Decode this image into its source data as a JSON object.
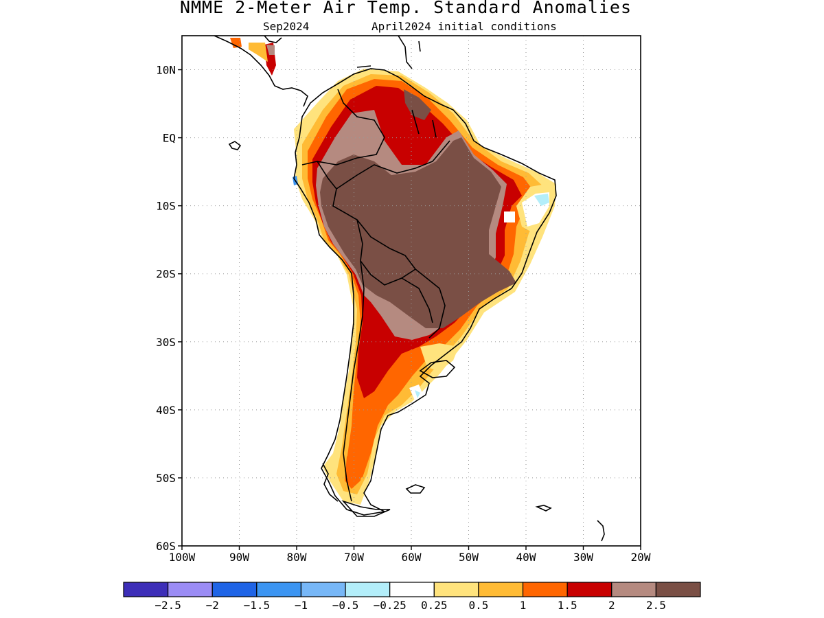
{
  "title": "NMME 2-Meter Air Temp. Standard Anomalies",
  "subtitle_left": "Sep2024",
  "subtitle_right": "April2024 initial conditions",
  "map": {
    "lon_range": [
      -100,
      -20
    ],
    "lat_range": [
      -60,
      15
    ],
    "lon_ticks": [
      {
        "value": -100,
        "label": "100W"
      },
      {
        "value": -90,
        "label": "90W"
      },
      {
        "value": -80,
        "label": "80W"
      },
      {
        "value": -70,
        "label": "70W"
      },
      {
        "value": -60,
        "label": "60W"
      },
      {
        "value": -50,
        "label": "50W"
      },
      {
        "value": -40,
        "label": "40W"
      },
      {
        "value": -30,
        "label": "30W"
      },
      {
        "value": -20,
        "label": "20W"
      }
    ],
    "lat_ticks": [
      {
        "value": 10,
        "label": "10N"
      },
      {
        "value": 0,
        "label": "EQ"
      },
      {
        "value": -10,
        "label": "10S"
      },
      {
        "value": -20,
        "label": "20S"
      },
      {
        "value": -30,
        "label": "30S"
      },
      {
        "value": -40,
        "label": "40S"
      },
      {
        "value": -50,
        "label": "50S"
      },
      {
        "value": -60,
        "label": "60S"
      }
    ]
  },
  "legend": {
    "colors": [
      "#3d2eb8",
      "#9b8cf5",
      "#1f64e6",
      "#3c95f2",
      "#77b7f7",
      "#b3eefa",
      "#ffffff",
      "#ffe37d",
      "#ffbb35",
      "#ff6600",
      "#c80000",
      "#b58a80",
      "#7a4f45"
    ],
    "labels": [
      "-2.5",
      "-2",
      "-1.5",
      "-1",
      "-0.5",
      "-0.25",
      "0.25",
      "0.5",
      "1",
      "1.5",
      "2",
      "2.5"
    ]
  }
}
